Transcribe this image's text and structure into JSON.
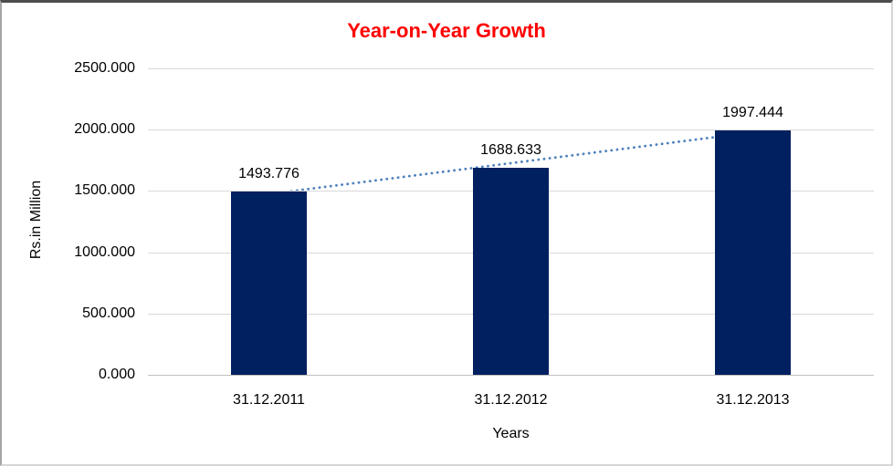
{
  "chart_data": {
    "type": "bar",
    "title": "Year-on-Year Growth",
    "categories": [
      "31.12.2011",
      "31.12.2012",
      "31.12.2013"
    ],
    "values": [
      1493.776,
      1688.633,
      1997.444
    ],
    "data_labels": [
      "1493.776",
      "1688.633",
      "1997.444"
    ],
    "xlabel": "Years",
    "ylabel": "Rs.in Million",
    "ylim": [
      0,
      2500
    ],
    "yticks": [
      0,
      500,
      1000,
      1500,
      2000,
      2500
    ],
    "ytick_labels": [
      "0.000",
      "500.000",
      "1000.000",
      "1500.000",
      "2000.000",
      "2500.000"
    ],
    "grid": true,
    "legend": false,
    "trendline": {
      "type": "linear",
      "style": "dotted"
    },
    "colors": {
      "bar": "#002060",
      "trendline": "#4f81bd",
      "title": "#ff0000",
      "gridline": "#d9d9d9",
      "text": "#000000",
      "background": "#ffffff"
    }
  }
}
